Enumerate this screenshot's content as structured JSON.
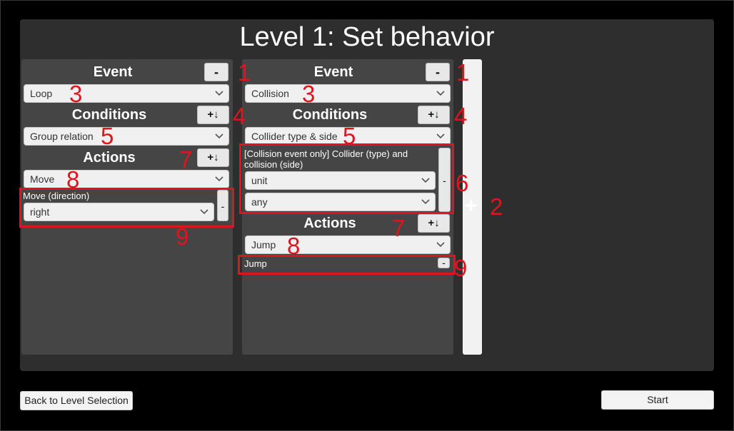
{
  "title": "Level 1: Set behavior",
  "event_block_1": {
    "event_header": "Event",
    "event_remove": "-",
    "event_value": "Loop",
    "conditions_header": "Conditions",
    "conditions_add": "+↓",
    "condition_value": "Group relation",
    "actions_header": "Actions",
    "actions_add": "+↓",
    "action_value": "Move",
    "action_param_label": "Move (direction)",
    "action_param_value": "right",
    "action_param_remove": "-"
  },
  "event_block_2": {
    "event_header": "Event",
    "event_remove": "-",
    "event_value": "Collision",
    "conditions_header": "Conditions",
    "conditions_add": "+↓",
    "condition_value": "Collider type & side",
    "condition_param_label": "[Collision event only] Collider (type) and collision (side)",
    "condition_param_type": "unit",
    "condition_param_side": "any",
    "condition_param_remove": "-",
    "actions_header": "Actions",
    "actions_add": "+↓",
    "action_value": "Jump",
    "action_param_label": "Jump",
    "action_param_remove": "-"
  },
  "add_event_label": "+",
  "annotations": {
    "n1": "1",
    "n2": "2",
    "n3": "3",
    "n4": "4",
    "n5": "5",
    "n6": "6",
    "n7": "7",
    "n8": "8",
    "n9": "9"
  },
  "footer": {
    "back_button": "Back to Level Selection",
    "start_button": "Start"
  },
  "colors": {
    "annotation": "#e0141e",
    "panel": "#2e2e2e",
    "column": "#454545"
  },
  "icons": {
    "dropdown": "chevron-down-icon"
  }
}
